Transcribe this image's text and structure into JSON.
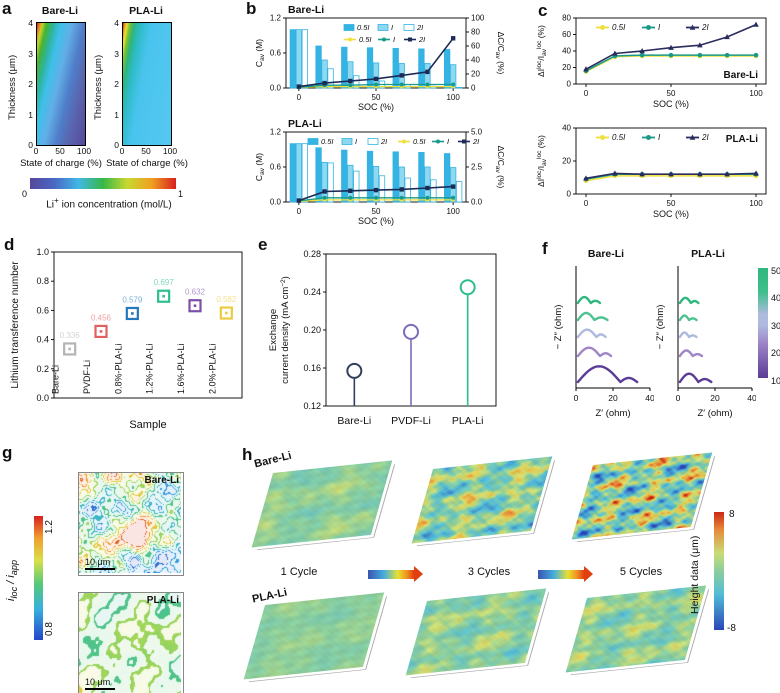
{
  "panels": {
    "a": "a",
    "b": "b",
    "c": "c",
    "d": "d",
    "e": "e",
    "f": "f",
    "g": "g",
    "h": "h"
  },
  "chart_data": [
    {
      "panel": "a",
      "type": "heatmap",
      "plots": [
        {
          "title": "Bare-Li"
        },
        {
          "title": "PLA-Li"
        }
      ],
      "xlabel": "State of charge (%)",
      "ylabel": "Thickness (μm)",
      "xticks": [
        0,
        50,
        100
      ],
      "yticks": [
        4,
        3,
        2,
        1,
        0
      ],
      "colorbar": {
        "label_html": "Li<sup>+</sup> ion concentration (mol/L)",
        "min": "0",
        "max": "1",
        "colors": [
          "#55489b",
          "#4a68c4",
          "#40b8e4",
          "#38b848",
          "#c8d830",
          "#f0a020",
          "#d82020"
        ]
      }
    },
    {
      "panel": "b",
      "type": "bar+line",
      "title": "Bare-Li",
      "xlabel": "SOC (%)",
      "legend_layout": "two-rows",
      "ylabel_left_rich": [
        [
          "n",
          "C"
        ],
        [
          "sub",
          "av"
        ],
        [
          "n",
          " (M)"
        ]
      ],
      "ylabel_right_rich": [
        [
          "n",
          "ΔC/C"
        ],
        [
          "sub",
          "av"
        ],
        [
          "n",
          " (%)"
        ]
      ],
      "x": [
        0,
        17,
        33,
        50,
        67,
        83,
        100
      ],
      "left_ylim": [
        0,
        1.2
      ],
      "left_ticks": [
        "0.0",
        "0.6",
        "1.2"
      ],
      "right_ylim": [
        0,
        100
      ],
      "right_ticks": [
        "0",
        "20",
        "40",
        "60",
        "80",
        "100"
      ],
      "bar_series": [
        {
          "name": "0.5I",
          "fill": "#35b3e3",
          "values": [
            1.0,
            0.72,
            0.7,
            0.69,
            0.68,
            0.67,
            0.66
          ]
        },
        {
          "name": "I",
          "fill": "#8ed8f0",
          "values": [
            1.0,
            0.48,
            0.45,
            0.43,
            0.42,
            0.42,
            0.4
          ]
        },
        {
          "name": "2I",
          "fill": "#ffffff",
          "values": [
            1.0,
            0.33,
            0.21,
            0.12,
            0.06,
            0.03,
            0.01
          ]
        }
      ],
      "line_series": [
        {
          "name": "0.5I",
          "color": "#f0e03c",
          "marker": "circle",
          "values": [
            1,
            2,
            2,
            2,
            2,
            2,
            2
          ]
        },
        {
          "name": "I",
          "color": "#18998a",
          "marker": "circle",
          "values": [
            1,
            4,
            4,
            5,
            5,
            5,
            5
          ]
        },
        {
          "name": "2I",
          "color": "#1c2a56",
          "marker": "square",
          "values": [
            2,
            7,
            10,
            13,
            18,
            23,
            71
          ]
        }
      ]
    },
    {
      "panel": "b",
      "type": "bar+line",
      "title": "PLA-Li",
      "xlabel": "SOC (%)",
      "legend_layout": "one-row",
      "ylabel_left_rich": [
        [
          "n",
          "C"
        ],
        [
          "sub",
          "av"
        ],
        [
          "n",
          " (M)"
        ]
      ],
      "ylabel_right_rich": [
        [
          "n",
          "ΔC/C"
        ],
        [
          "sub",
          "av"
        ],
        [
          "n",
          " (%)"
        ]
      ],
      "x": [
        0,
        17,
        33,
        50,
        67,
        83,
        100
      ],
      "left_ylim": [
        0,
        1.2
      ],
      "left_ticks": [
        "0.0",
        "0.6",
        "1.2"
      ],
      "right_ylim": [
        0,
        5
      ],
      "right_ticks": [
        "0.0",
        "2.5",
        "5.0"
      ],
      "bar_series": [
        {
          "name": "0.5I",
          "fill": "#35b3e3",
          "values": [
            1.0,
            0.93,
            0.89,
            0.87,
            0.86,
            0.85,
            0.83
          ]
        },
        {
          "name": "I",
          "fill": "#8ed8f0",
          "values": [
            1.0,
            0.68,
            0.63,
            0.61,
            0.6,
            0.6,
            0.59
          ]
        },
        {
          "name": "2I",
          "fill": "#ffffff",
          "values": [
            1.0,
            0.67,
            0.53,
            0.45,
            0.41,
            0.38,
            0.35
          ]
        }
      ],
      "line_series": [
        {
          "name": "0.5I",
          "color": "#f0e03c",
          "marker": "circle",
          "values": [
            0.05,
            0.15,
            0.15,
            0.15,
            0.15,
            0.15,
            0.15
          ]
        },
        {
          "name": "I",
          "color": "#18998a",
          "marker": "circle",
          "values": [
            0.08,
            0.3,
            0.3,
            0.3,
            0.3,
            0.3,
            0.3
          ]
        },
        {
          "name": "2I",
          "color": "#1c2a56",
          "marker": "square",
          "values": [
            0.1,
            0.75,
            0.8,
            0.85,
            0.9,
            1.0,
            1.1
          ]
        }
      ]
    },
    {
      "panel": "c",
      "type": "line",
      "title": "Bare-Li",
      "title_pos": "br",
      "xlabel": "SOC (%)",
      "ylabel_rich": [
        [
          "n",
          "ΔI"
        ],
        [
          "sup",
          "loc"
        ],
        [
          "n",
          "/I"
        ],
        [
          "sub",
          "av"
        ],
        [
          "sup",
          "loc"
        ],
        [
          "n",
          " (%)"
        ]
      ],
      "x": [
        0,
        17,
        33,
        50,
        67,
        83,
        100
      ],
      "ylim": [
        0,
        80
      ],
      "yticks": [
        0,
        20,
        40,
        60,
        80
      ],
      "xticks": [
        0,
        50,
        100
      ],
      "series": [
        {
          "name": "0.5I",
          "color": "#f0e03c",
          "marker": "circle",
          "values": [
            15,
            33,
            34,
            34,
            34,
            34,
            34
          ]
        },
        {
          "name": "I",
          "color": "#18998a",
          "marker": "circle",
          "values": [
            16,
            34,
            35,
            35,
            35,
            35,
            35
          ]
        },
        {
          "name": "2I",
          "color": "#2a2c5e",
          "marker": "triangle",
          "values": [
            18,
            37,
            40,
            44,
            47,
            57,
            72
          ]
        }
      ]
    },
    {
      "panel": "c",
      "type": "line",
      "title": "PLA-Li",
      "title_pos": "tr",
      "xlabel": "SOC (%)",
      "ylabel_rich": [
        [
          "n",
          "ΔI"
        ],
        [
          "sup",
          "loc"
        ],
        [
          "n",
          "/I"
        ],
        [
          "sub",
          "av"
        ],
        [
          "sup",
          "loc"
        ],
        [
          "n",
          " (%)"
        ]
      ],
      "x": [
        0,
        17,
        33,
        50,
        67,
        83,
        100
      ],
      "ylim": [
        0,
        40
      ],
      "yticks": [
        0,
        20,
        40
      ],
      "xticks": [
        0,
        50,
        100
      ],
      "series": [
        {
          "name": "0.5I",
          "color": "#f0e03c",
          "marker": "circle",
          "values": [
            8,
            11,
            11,
            11,
            11,
            11,
            11
          ]
        },
        {
          "name": "I",
          "color": "#18998a",
          "marker": "circle",
          "values": [
            9,
            12,
            12,
            12,
            12,
            12,
            12
          ]
        },
        {
          "name": "2I",
          "color": "#2a2c5e",
          "marker": "triangle",
          "values": [
            9.5,
            12.5,
            12,
            12,
            12,
            12,
            12.5
          ]
        }
      ]
    },
    {
      "panel": "d",
      "type": "scatter",
      "xlabel": "Sample",
      "ylabel": "Lithium transference number",
      "ylim": [
        0,
        1.0
      ],
      "yticks": [
        "0.0",
        "0.2",
        "0.4",
        "0.6",
        "0.8",
        "1.0"
      ],
      "points": [
        {
          "label": "Bare-Li",
          "value": 0.336,
          "display": "0.336",
          "color": "#b4b4b4"
        },
        {
          "label": "PVDF-Li",
          "value": 0.456,
          "display": "0.456",
          "color": "#e36060"
        },
        {
          "label": "0.8%-PLA-Li",
          "value": 0.579,
          "display": "0.579",
          "color": "#2279bd"
        },
        {
          "label": "1.2%-PLA-Li",
          "value": 0.697,
          "display": "0.697",
          "color": "#2dbe8d"
        },
        {
          "label": "1.6%-PLA-Li",
          "value": 0.632,
          "display": "0.632",
          "color": "#7e4fa8"
        },
        {
          "label": "2.0%-PLA-Li",
          "value": 0.582,
          "display": "0.582",
          "color": "#eccc3e"
        }
      ]
    },
    {
      "panel": "e",
      "type": "lollipop",
      "ylabel_line1": "Exchange",
      "ylabel_line2_rich": [
        [
          "n",
          "current density (mA cm"
        ],
        [
          "sup",
          "−2"
        ],
        [
          "n",
          ")"
        ]
      ],
      "ylim": [
        0.12,
        0.28
      ],
      "yticks": [
        "0.12",
        "0.16",
        "0.20",
        "0.24",
        "0.28"
      ],
      "points": [
        {
          "label": "Bare-Li",
          "value": 0.157,
          "color": "#333f5e"
        },
        {
          "label": "PVDF-Li",
          "value": 0.198,
          "color": "#7e6cb8"
        },
        {
          "label": "PLA-Li",
          "value": 0.245,
          "color": "#2dbe8d"
        }
      ]
    },
    {
      "panel": "f",
      "type": "nyquist",
      "xlabel": "Z′ (ohm)",
      "ylabel": "− Z″ (ohm)",
      "xticks": [
        0,
        20,
        40
      ],
      "xlim": [
        0,
        40
      ],
      "curve_format": "[x_start, x_mid, x_end, arc_height, tail_height] in ohm",
      "cycles": [
        {
          "label_html": "10<sup>th</sup>",
          "color": "#5a3d96"
        },
        {
          "label_html": "20<sup>th</sup>",
          "color": "#9e86c8"
        },
        {
          "label_html": "30<sup>th</sup>",
          "color": "#aebade"
        },
        {
          "label_html": "40<sup>th</sup>",
          "color": "#4fc291"
        },
        {
          "label_html": "50<sup>th</sup>",
          "color": "#2eb87e"
        }
      ],
      "plots": [
        {
          "title": "Bare-Li",
          "curves": [
            [
              1,
              24,
              33,
              8.5,
              2.2
            ],
            [
              1,
              13,
              19,
              4.5,
              1.5
            ],
            [
              1,
              11,
              16,
              4.0,
              1.4
            ],
            [
              1,
              10,
              17,
              3.8,
              1.4
            ],
            [
              1,
              8,
              13,
              3.2,
              1.2
            ]
          ]
        },
        {
          "title": "PLA-Li",
          "curves": [
            [
              1,
              11,
              18,
              4.5,
              1.6
            ],
            [
              1,
              8,
              13,
              3.0,
              1.0
            ],
            [
              1,
              6,
              10,
              2.4,
              0.9
            ],
            [
              1,
              6,
              10,
              2.4,
              0.9
            ],
            [
              1,
              7,
              11,
              2.8,
              1.1
            ]
          ]
        }
      ]
    },
    {
      "panel": "g",
      "type": "current-contour-maps",
      "colorbar": {
        "label_html": "<i>i</i><sub>loc</sub> / <i>i</i><sub>app</sub>",
        "max": "1.2",
        "min": "0.8"
      },
      "maps": [
        {
          "title": "Bare-Li",
          "scalebar": "10 μm"
        },
        {
          "title": "PLA-Li",
          "scalebar": "10 μm"
        }
      ]
    },
    {
      "panel": "h",
      "type": "height-surfaces",
      "rows": [
        {
          "label": "Bare-Li"
        },
        {
          "label": "PLA-Li"
        }
      ],
      "columns": [
        "1 Cycle",
        "3 Cycles",
        "5 Cycles"
      ],
      "colorbar": {
        "label": "Height data (μm)",
        "max": "8",
        "min": "-8"
      }
    }
  ]
}
